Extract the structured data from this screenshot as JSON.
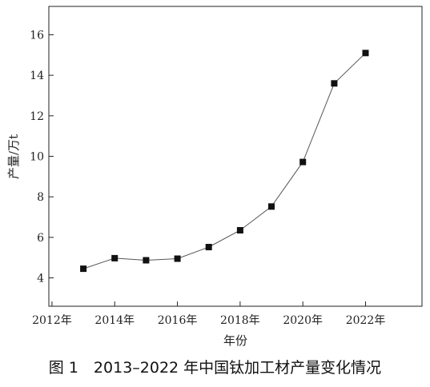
{
  "caption": "图 1　2013–2022 年中国钛加工材产量变化情况",
  "chart_data": {
    "type": "line",
    "xlabel": "年份",
    "ylabel": "产量/万t",
    "x_tick_labels": [
      "2012年",
      "2014年",
      "2016年",
      "2018年",
      "2020年",
      "2022年"
    ],
    "x_ticks": [
      2012,
      2014,
      2016,
      2018,
      2020,
      2022
    ],
    "y_ticks": [
      4,
      6,
      8,
      10,
      12,
      14,
      16
    ],
    "xlim": [
      2011.9,
      2023.8
    ],
    "ylim": [
      2.6,
      17.4
    ],
    "grid": false,
    "marker": "square",
    "series": [
      {
        "x": [
          2013,
          2014,
          2015,
          2016,
          2017,
          2018,
          2019,
          2020,
          2021,
          2022
        ],
        "y": [
          4.45,
          4.97,
          4.87,
          4.95,
          5.52,
          6.35,
          7.52,
          9.72,
          13.6,
          15.1
        ]
      }
    ],
    "colors": {
      "line": "#555555",
      "marker": "#111111",
      "axis": "#222222"
    }
  }
}
